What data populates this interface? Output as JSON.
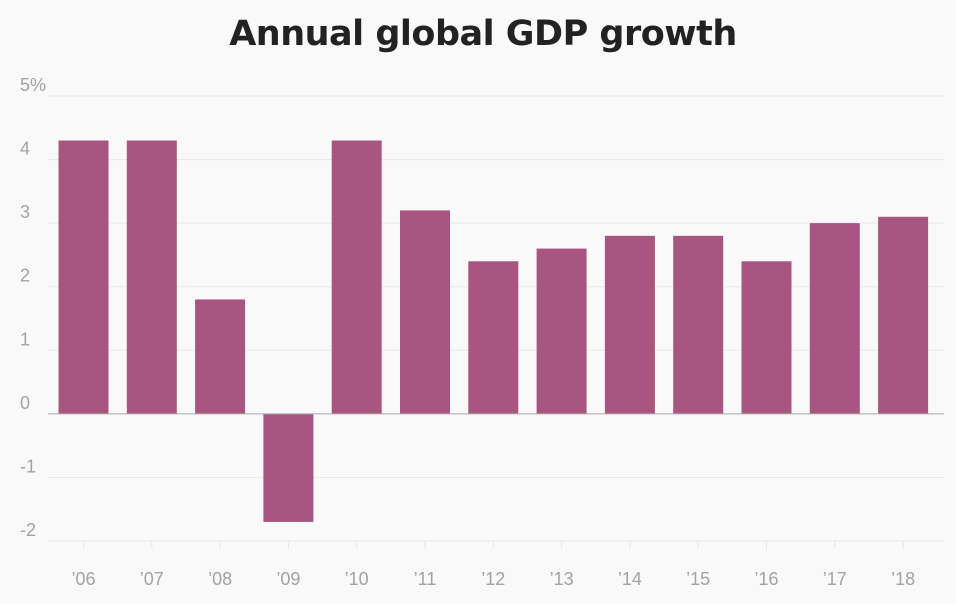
{
  "chart_data": {
    "type": "bar",
    "title": "Annual global GDP growth",
    "xlabel": "",
    "ylabel": "",
    "categories": [
      "’06",
      "’07",
      "’08",
      "’09",
      "’10",
      "’11",
      "’12",
      "’13",
      "’14",
      "’15",
      "’16",
      "’17",
      "’18"
    ],
    "values": [
      4.3,
      4.3,
      1.8,
      -1.7,
      4.3,
      3.2,
      2.4,
      2.6,
      2.8,
      2.8,
      2.4,
      3.0,
      3.1
    ],
    "ylim": [
      -2,
      5
    ],
    "yticks": [
      {
        "value": 5,
        "label": "5%"
      },
      {
        "value": 4,
        "label": "4"
      },
      {
        "value": 3,
        "label": "3"
      },
      {
        "value": 2,
        "label": "2"
      },
      {
        "value": 1,
        "label": "1"
      },
      {
        "value": 0,
        "label": "0"
      },
      {
        "value": -1,
        "label": "-1"
      },
      {
        "value": -2,
        "label": "-2"
      }
    ],
    "grid": true,
    "legend": "none",
    "bar_color": "#a8567f"
  }
}
